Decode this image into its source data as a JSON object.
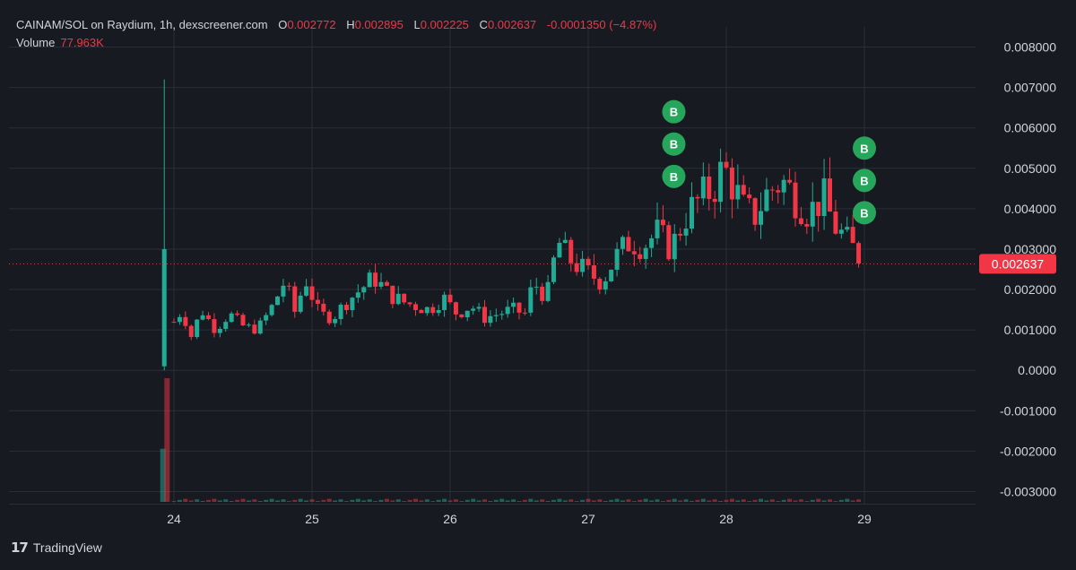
{
  "header": {
    "symbol": "CAINAM/SOL on Raydium, 1h, dexscreener.com",
    "o_label": "O",
    "o_value": "0.002772",
    "h_label": "H",
    "h_value": "0.002895",
    "l_label": "L",
    "l_value": "0.002225",
    "c_label": "C",
    "c_value": "0.002637",
    "change": "-0.0001350 (−4.87%)"
  },
  "volume": {
    "label": "Volume",
    "value": "77.963K"
  },
  "footer": {
    "brand": "TradingView",
    "logo_glyph": "17"
  },
  "colors": {
    "up": "#22ab94",
    "down": "#f23645",
    "marker": "#26a65b",
    "background": "#181a21",
    "grid": "#2a2e39"
  },
  "chart_data": {
    "type": "candlestick",
    "x_ticks": [
      "24",
      "25",
      "26",
      "27",
      "28",
      "29"
    ],
    "y_ticks": [
      "0.008000",
      "0.007000",
      "0.006000",
      "0.005000",
      "0.004000",
      "0.003000",
      "0.002000",
      "0.001000",
      "0.0000",
      "-0.001000",
      "-0.002000",
      "-0.003000"
    ],
    "ylim": [
      -0.0033,
      0.0085
    ],
    "xlim": [
      23.0,
      30.0
    ],
    "last_price_label": "0.002637",
    "last_price": 0.002637,
    "grid": true,
    "buy_marker_label": "B",
    "buy_markers": [
      {
        "x": 27.62,
        "y": 0.0064
      },
      {
        "x": 27.62,
        "y": 0.0056
      },
      {
        "x": 27.62,
        "y": 0.0048
      },
      {
        "x": 29.0,
        "y": 0.0055
      },
      {
        "x": 29.0,
        "y": 0.0047
      },
      {
        "x": 29.0,
        "y": 0.0039
      }
    ],
    "candle_anchors": [
      [
        23.92,
        0.0001
      ],
      [
        23.96,
        0.0028
      ],
      [
        24.0,
        0.0012
      ],
      [
        24.06,
        0.0015
      ],
      [
        24.12,
        0.0008
      ],
      [
        24.2,
        0.0015
      ],
      [
        24.3,
        0.001
      ],
      [
        24.4,
        0.0014
      ],
      [
        24.5,
        0.0011
      ],
      [
        24.6,
        0.001
      ],
      [
        24.7,
        0.0015
      ],
      [
        24.8,
        0.0022
      ],
      [
        24.88,
        0.0014
      ],
      [
        24.95,
        0.0023
      ],
      [
        25.05,
        0.0014
      ],
      [
        25.15,
        0.0013
      ],
      [
        25.25,
        0.0017
      ],
      [
        25.35,
        0.002
      ],
      [
        25.45,
        0.0023
      ],
      [
        25.55,
        0.0019
      ],
      [
        25.65,
        0.0017
      ],
      [
        25.75,
        0.0016
      ],
      [
        25.85,
        0.0015
      ],
      [
        25.95,
        0.0018
      ],
      [
        26.05,
        0.0014
      ],
      [
        26.15,
        0.0016
      ],
      [
        26.25,
        0.0013
      ],
      [
        26.35,
        0.0014
      ],
      [
        26.45,
        0.0015
      ],
      [
        26.55,
        0.0014
      ],
      [
        26.6,
        0.0022
      ],
      [
        26.7,
        0.0018
      ],
      [
        26.78,
        0.0032
      ],
      [
        26.85,
        0.0028
      ],
      [
        26.92,
        0.0026
      ],
      [
        27.0,
        0.0024
      ],
      [
        27.1,
        0.0022
      ],
      [
        27.2,
        0.0028
      ],
      [
        27.3,
        0.0032
      ],
      [
        27.4,
        0.0031
      ],
      [
        27.5,
        0.0034
      ],
      [
        27.6,
        0.003
      ],
      [
        27.7,
        0.0038
      ],
      [
        27.8,
        0.0042
      ],
      [
        27.9,
        0.0045
      ],
      [
        27.98,
        0.005
      ],
      [
        28.05,
        0.0046
      ],
      [
        28.12,
        0.004
      ],
      [
        28.2,
        0.0038
      ],
      [
        28.3,
        0.0044
      ],
      [
        28.4,
        0.0047
      ],
      [
        28.5,
        0.0043
      ],
      [
        28.6,
        0.0039
      ],
      [
        28.7,
        0.0043
      ],
      [
        28.78,
        0.0036
      ],
      [
        28.85,
        0.0033
      ],
      [
        28.92,
        0.003
      ],
      [
        29.0,
        0.002637
      ]
    ],
    "spike": {
      "x": 23.93,
      "high": 0.0072,
      "low": 0.0,
      "open": 0.0001,
      "close": 0.003
    },
    "volume_spike_candles": [
      {
        "x": 23.92,
        "direction": "up",
        "value_fraction": 0.43
      },
      {
        "x": 23.95,
        "direction": "down",
        "value_fraction": 1.0
      }
    ]
  }
}
